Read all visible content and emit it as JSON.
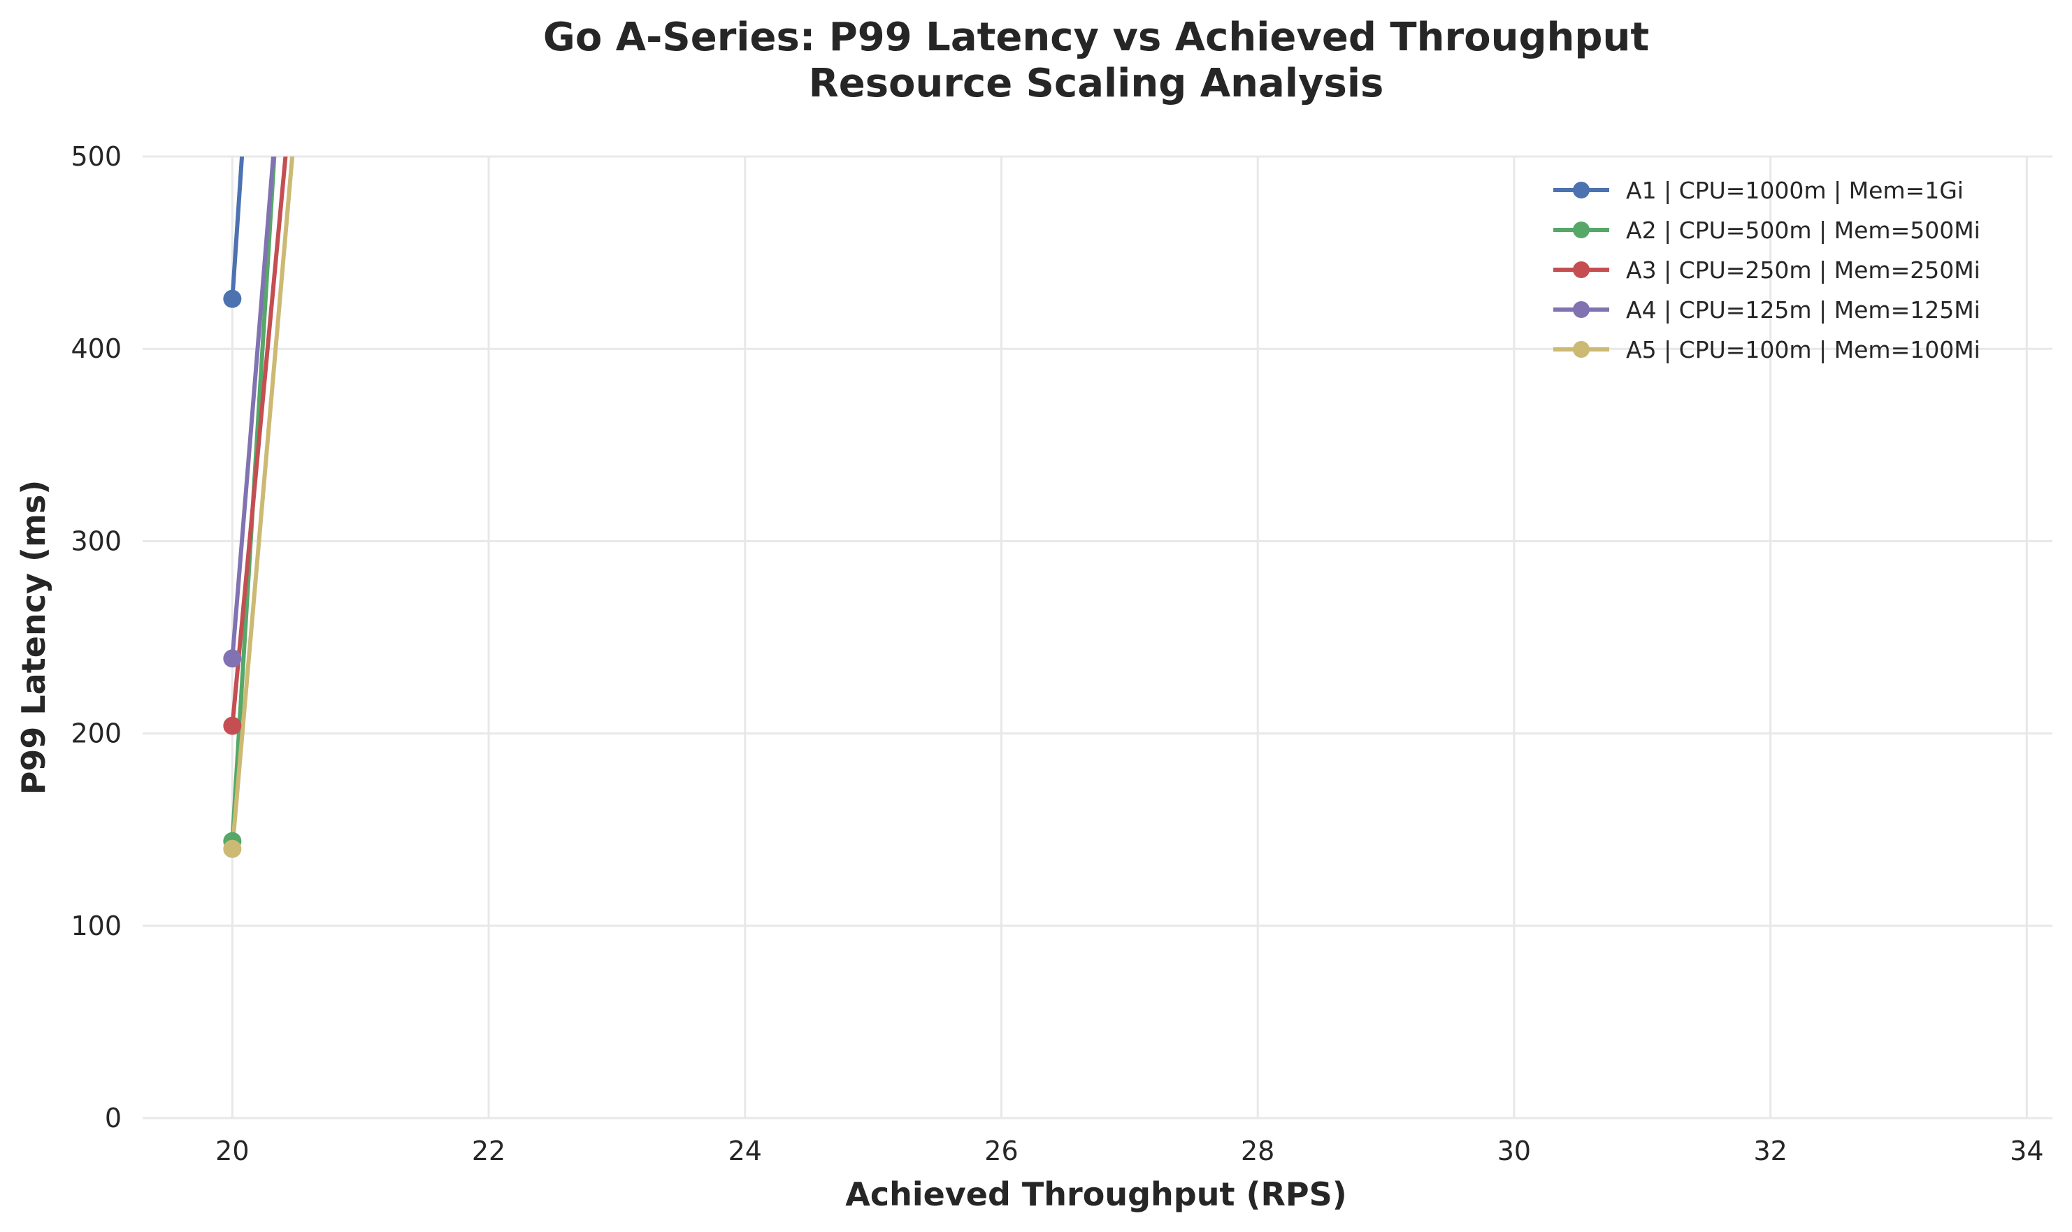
{
  "chart_data": {
    "type": "line",
    "title": "Go A-Series: P99 Latency vs Achieved Throughput",
    "subtitle": "Resource Scaling Analysis",
    "xlabel": "Achieved Throughput (RPS)",
    "ylabel": "P99 Latency (ms)",
    "xlim": [
      19.3,
      34.2
    ],
    "ylim": [
      0,
      500
    ],
    "xticks": [
      20,
      22,
      24,
      26,
      28,
      30,
      32,
      34
    ],
    "yticks": [
      0,
      100,
      200,
      300,
      400,
      500
    ],
    "grid": true,
    "legend_position": "top-right",
    "series": [
      {
        "name": "A1 | CPU=1000m | Mem=1Gi",
        "color": "#4c72b0",
        "points": [
          [
            20.0,
            426
          ],
          [
            20.1,
            525
          ]
        ]
      },
      {
        "name": "A2 | CPU=500m | Mem=500Mi",
        "color": "#55a868",
        "points": [
          [
            20.0,
            144
          ],
          [
            20.35,
            525
          ]
        ]
      },
      {
        "name": "A3 | CPU=250m | Mem=250Mi",
        "color": "#c44e52",
        "points": [
          [
            20.0,
            204
          ],
          [
            20.45,
            525
          ]
        ]
      },
      {
        "name": "A4 | CPU=125m | Mem=125Mi",
        "color": "#8172b2",
        "points": [
          [
            20.0,
            239
          ],
          [
            20.35,
            525
          ]
        ]
      },
      {
        "name": "A5 | CPU=100m | Mem=100Mi",
        "color": "#ccb974",
        "points": [
          [
            20.0,
            140
          ],
          [
            20.5,
            525
          ]
        ]
      }
    ]
  }
}
